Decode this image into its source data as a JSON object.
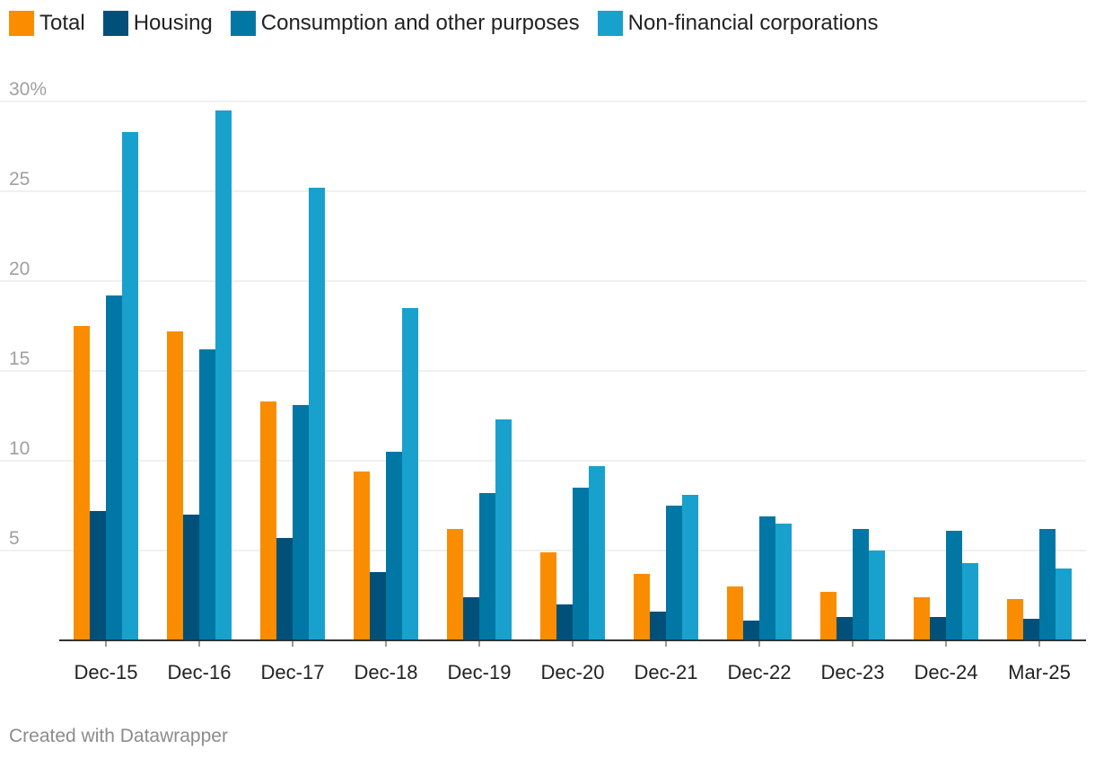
{
  "chart_data": {
    "type": "bar",
    "title": "",
    "xlabel": "",
    "ylabel": "",
    "ylim": [
      0,
      30
    ],
    "yticks": [
      5,
      10,
      15,
      20,
      25,
      30
    ],
    "ytick_labels": [
      "5",
      "10",
      "15",
      "20",
      "25",
      "30%"
    ],
    "grid": true,
    "legend_position": "top-left",
    "categories": [
      "Dec-15",
      "Dec-16",
      "Dec-17",
      "Dec-18",
      "Dec-19",
      "Dec-20",
      "Dec-21",
      "Dec-22",
      "Dec-23",
      "Dec-24",
      "Mar-25"
    ],
    "series": [
      {
        "name": "Total",
        "color": "#fa8c00",
        "values": [
          17.5,
          17.2,
          13.3,
          9.4,
          6.2,
          4.9,
          3.7,
          3.0,
          2.7,
          2.4,
          2.3
        ]
      },
      {
        "name": "Housing",
        "color": "#00507a",
        "values": [
          7.2,
          7.0,
          5.7,
          3.8,
          2.4,
          2.0,
          1.6,
          1.1,
          1.3,
          1.3,
          1.2
        ]
      },
      {
        "name": "Consumption and other purposes",
        "color": "#0077a4",
        "values": [
          19.2,
          16.2,
          13.1,
          10.5,
          8.2,
          8.5,
          7.5,
          6.9,
          6.2,
          6.1,
          6.2
        ]
      },
      {
        "name": "Non-financial corporations",
        "color": "#18a1cd",
        "values": [
          28.3,
          29.5,
          25.2,
          18.5,
          12.3,
          9.7,
          8.1,
          6.5,
          5.0,
          4.3,
          4.0
        ]
      }
    ]
  },
  "footer": {
    "credit": "Created with Datawrapper"
  }
}
